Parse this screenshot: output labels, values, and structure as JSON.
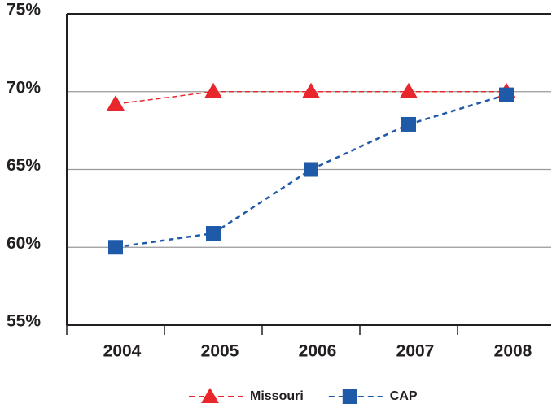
{
  "chart_data": {
    "type": "line",
    "categories": [
      "2004",
      "2005",
      "2006",
      "2007",
      "2008"
    ],
    "series": [
      {
        "name": "Missouri",
        "color": "#e8262b",
        "marker": "triangle",
        "values": [
          69.2,
          70,
          70,
          70,
          70
        ]
      },
      {
        "name": "CAP",
        "color": "#1f5aa8",
        "marker": "square",
        "values": [
          60,
          60.9,
          65,
          67.9,
          69.8
        ]
      }
    ],
    "ylim": [
      55,
      75
    ],
    "yticks": [
      {
        "value": 55,
        "label": "55%"
      },
      {
        "value": 60,
        "label": "60%"
      },
      {
        "value": 65,
        "label": "65%"
      },
      {
        "value": 70,
        "label": "70%"
      },
      {
        "value": 75,
        "label": "75%"
      }
    ],
    "grid": true,
    "legend": "bottom"
  }
}
